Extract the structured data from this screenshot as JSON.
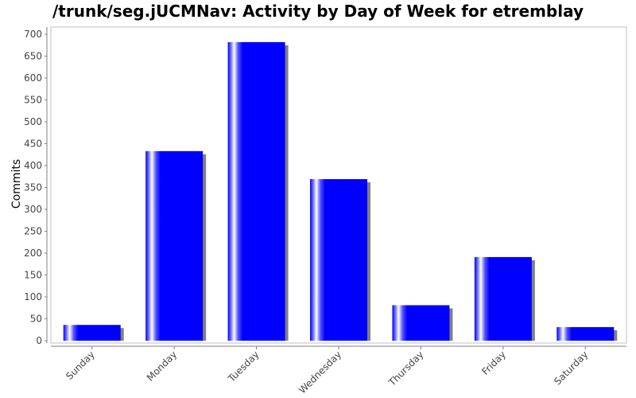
{
  "chart_data": {
    "type": "bar",
    "title": "/trunk/seg.jUCMNav: Activity by Day of Week for etremblay",
    "xlabel": "",
    "ylabel": "Commits",
    "categories": [
      "Sunday",
      "Monday",
      "Tuesday",
      "Wednesday",
      "Thursday",
      "Friday",
      "Saturday"
    ],
    "values": [
      36,
      433,
      682,
      369,
      81,
      191,
      31
    ],
    "ylim": [
      0,
      700
    ],
    "yticks": [
      0,
      50,
      100,
      150,
      200,
      250,
      300,
      350,
      400,
      450,
      500,
      550,
      600,
      650,
      700
    ],
    "grid": false,
    "legend": "none",
    "bar_color": "#0000ff",
    "shadow_color": "#808080"
  }
}
